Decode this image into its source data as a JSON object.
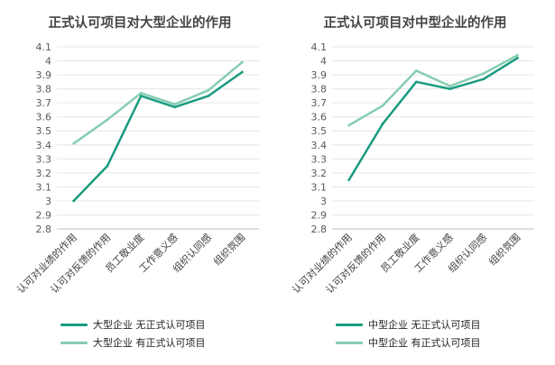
{
  "chart_data": [
    {
      "type": "line",
      "title": "正式认可项目对大型企业的作用",
      "categories": [
        "认可对业绩的作用",
        "认可对反馈的作用",
        "员工敬业度",
        "工作意义感",
        "组织认同感",
        "组织氛围"
      ],
      "series": [
        {
          "name": "大型企业 无正式认可项目",
          "values": [
            3.0,
            3.25,
            3.75,
            3.67,
            3.75,
            3.92
          ],
          "color": "#1a9b80"
        },
        {
          "name": "大型企业 有正式认可项目",
          "values": [
            3.41,
            3.58,
            3.77,
            3.69,
            3.79,
            3.99
          ],
          "color": "#86cdb2"
        }
      ],
      "yticks": [
        "2.8",
        "2.9",
        "3",
        "3.1",
        "3.2",
        "3.3",
        "3.4",
        "3.5",
        "3.6",
        "3.7",
        "3.8",
        "3.9",
        "4",
        "4.1"
      ],
      "ylim": [
        2.8,
        4.1
      ],
      "grid": true,
      "legend": "bottom"
    },
    {
      "type": "line",
      "title": "正式认可项目对中型企业的作用",
      "categories": [
        "认可对业绩的作用",
        "认可对反馈的作用",
        "员工敬业度",
        "工作意义感",
        "组织认同感",
        "组织氛围"
      ],
      "series": [
        {
          "name": "中型企业 无正式认可项目",
          "values": [
            3.15,
            3.55,
            3.85,
            3.8,
            3.87,
            4.02
          ],
          "color": "#1a9b80"
        },
        {
          "name": "中型企业 有正式认可项目",
          "values": [
            3.54,
            3.68,
            3.93,
            3.82,
            3.91,
            4.04
          ],
          "color": "#86cdb2"
        }
      ],
      "yticks": [
        "2.8",
        "2.9",
        "3",
        "3.1",
        "3.2",
        "3.3",
        "3.4",
        "3.5",
        "3.6",
        "3.7",
        "3.8",
        "3.9",
        "4",
        "4.1"
      ],
      "ylim": [
        2.8,
        4.1
      ],
      "grid": true,
      "legend": "bottom"
    }
  ]
}
